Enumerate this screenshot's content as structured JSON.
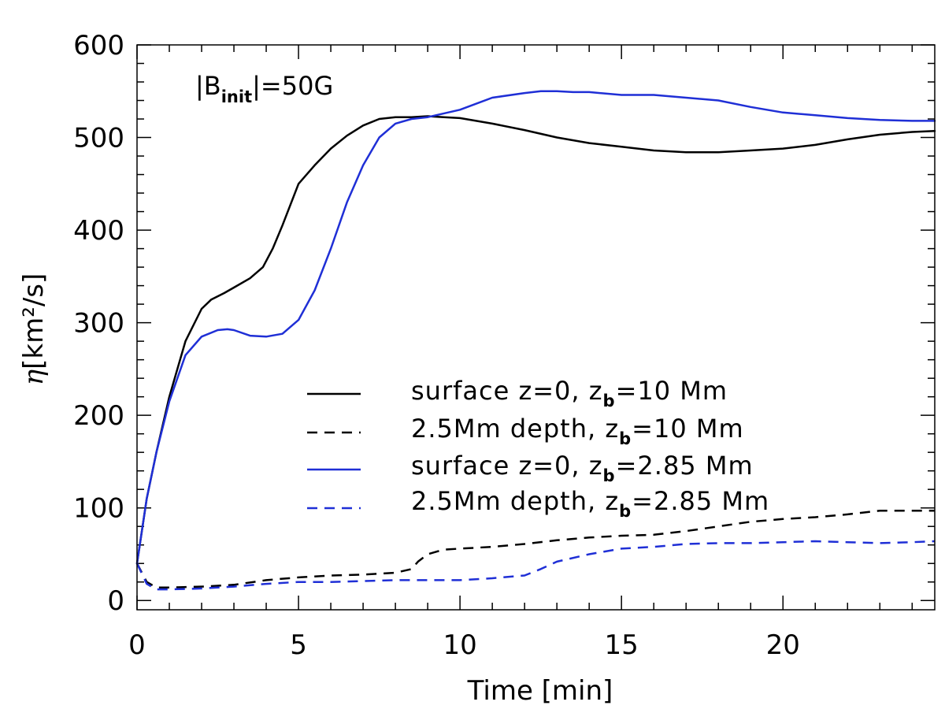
{
  "chart_data": {
    "type": "line",
    "title": "",
    "annotation": {
      "prefix": "|B",
      "sub": "init",
      "suffix": "|=50G"
    },
    "xlabel": "Time [min]",
    "ylabel": {
      "symbol": "η",
      "text": "[km²/s]"
    },
    "xlim": [
      0,
      24.7
    ],
    "ylim": [
      -10,
      600
    ],
    "x_ticks": [
      0,
      5,
      10,
      15,
      20
    ],
    "y_ticks": [
      0,
      100,
      200,
      300,
      400,
      500,
      600
    ],
    "colors": {
      "black": "#000000",
      "blue": "#1f2fd6"
    },
    "series": [
      {
        "id": "s1",
        "name": "surface z=0, z_b=10 Mm",
        "legend": {
          "prefix": "surface z=0, z",
          "sub": "b",
          "suffix": "=10 Mm"
        },
        "color": "#000000",
        "dash": "solid",
        "x": [
          0,
          0.3,
          0.6,
          1.0,
          1.5,
          2.0,
          2.3,
          2.7,
          3.0,
          3.5,
          3.9,
          4.2,
          4.5,
          5.0,
          5.5,
          6.0,
          6.5,
          7.0,
          7.5,
          8.0,
          8.5,
          9.0,
          9.5,
          10.0,
          11.0,
          12.0,
          13.0,
          14.0,
          15.0,
          16.0,
          17.0,
          18.0,
          19.0,
          20.0,
          21.0,
          22.0,
          23.0,
          24.0,
          24.7
        ],
        "y": [
          40,
          110,
          160,
          220,
          280,
          315,
          325,
          332,
          338,
          348,
          360,
          380,
          405,
          450,
          470,
          488,
          502,
          513,
          520,
          522,
          522,
          523,
          522,
          521,
          515,
          508,
          500,
          494,
          490,
          486,
          484,
          484,
          486,
          488,
          492,
          498,
          503,
          506,
          507
        ]
      },
      {
        "id": "s2",
        "name": "2.5Mm depth, z_b=10 Mm",
        "legend": {
          "prefix": "2.5Mm depth, z",
          "sub": "b",
          "suffix": "=10 Mm"
        },
        "color": "#000000",
        "dash": "dashed",
        "x": [
          0,
          0.3,
          0.6,
          1.0,
          2.0,
          3.0,
          4.0,
          5.0,
          6.0,
          7.0,
          8.0,
          8.5,
          8.7,
          9.0,
          9.5,
          10.0,
          11.0,
          12.0,
          13.0,
          14.0,
          15.0,
          16.0,
          17.0,
          18.0,
          19.0,
          20.0,
          21.0,
          22.0,
          23.0,
          24.0,
          24.7
        ],
        "y": [
          40,
          20,
          14,
          14,
          15,
          17,
          22,
          25,
          27,
          28,
          30,
          34,
          42,
          50,
          55,
          56,
          58,
          61,
          65,
          68,
          70,
          71,
          75,
          80,
          85,
          88,
          90,
          93,
          97,
          97,
          97
        ]
      },
      {
        "id": "s3",
        "name": "surface z=0, z_b=2.85 Mm",
        "legend": {
          "prefix": "surface z=0, z",
          "sub": "b",
          "suffix": "=2.85 Mm"
        },
        "color": "#1f2fd6",
        "dash": "solid",
        "x": [
          0,
          0.3,
          0.6,
          1.0,
          1.5,
          2.0,
          2.5,
          2.8,
          3.0,
          3.5,
          4.0,
          4.5,
          5.0,
          5.5,
          6.0,
          6.5,
          7.0,
          7.5,
          8.0,
          8.5,
          9.0,
          10.0,
          11.0,
          12.0,
          12.5,
          13.0,
          13.5,
          14.0,
          15.0,
          16.0,
          17.0,
          18.0,
          19.0,
          20.0,
          21.0,
          22.0,
          23.0,
          24.0,
          24.7
        ],
        "y": [
          40,
          110,
          160,
          215,
          265,
          285,
          292,
          293,
          292,
          286,
          285,
          288,
          303,
          335,
          380,
          430,
          470,
          500,
          515,
          520,
          522,
          530,
          543,
          548,
          550,
          550,
          549,
          549,
          546,
          546,
          543,
          540,
          533,
          527,
          524,
          521,
          519,
          518,
          518
        ]
      },
      {
        "id": "s4",
        "name": "2.5Mm depth, z_b=2.85 Mm",
        "legend": {
          "prefix": "2.5Mm depth, z",
          "sub": "b",
          "suffix": "=2.85 Mm"
        },
        "color": "#1f2fd6",
        "dash": "dashed",
        "x": [
          0,
          0.3,
          0.6,
          1.0,
          2.0,
          3.0,
          4.0,
          5.0,
          6.0,
          7.0,
          8.0,
          9.0,
          10.0,
          11.0,
          12.0,
          12.5,
          13.0,
          14.0,
          15.0,
          16.0,
          17.0,
          18.0,
          19.0,
          20.0,
          21.0,
          22.0,
          23.0,
          24.0,
          24.7
        ],
        "y": [
          40,
          18,
          12,
          12,
          13,
          15,
          18,
          20,
          20,
          21,
          22,
          22,
          22,
          24,
          27,
          34,
          42,
          50,
          56,
          58,
          61,
          62,
          62,
          63,
          64,
          63,
          62,
          63,
          64
        ]
      }
    ],
    "legend_position": "center-right"
  }
}
